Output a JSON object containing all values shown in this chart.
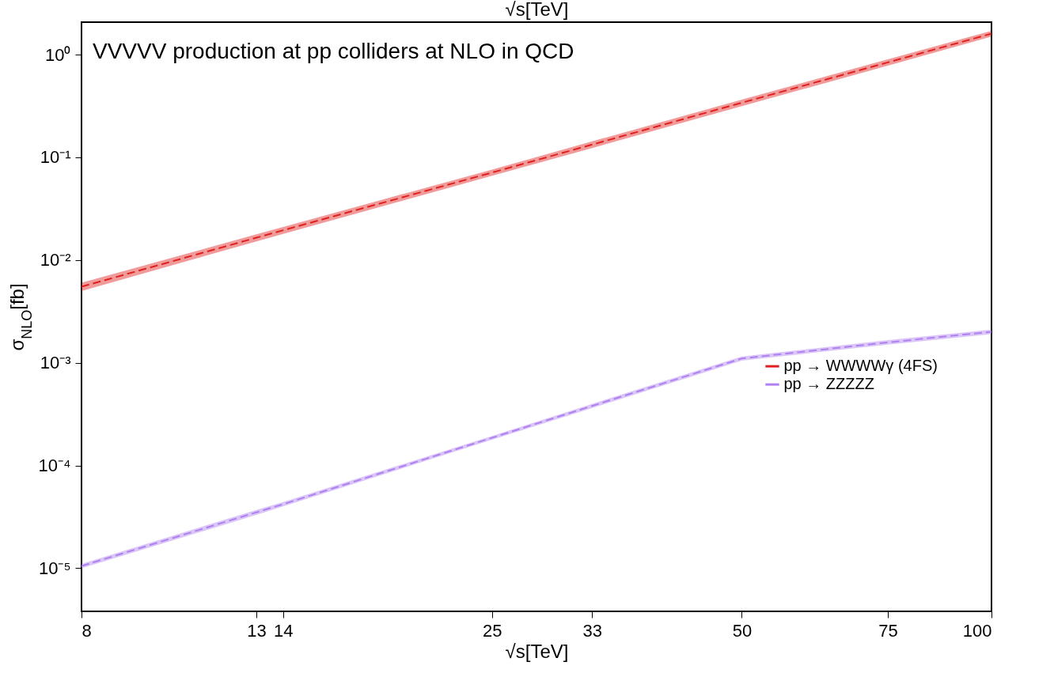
{
  "chart_data": {
    "type": "line",
    "title": "VVVVV production at pp colliders at NLO in QCD",
    "xlabel": "√s[TeV]",
    "x2label": "√s[TeV]",
    "ylabel": "σ$_{NLO}$[fb]",
    "x": [
      8,
      13,
      14,
      25,
      33,
      50,
      75,
      100
    ],
    "series": [
      {
        "name": "pp → WWWWγ (4FS)",
        "color": "#e02020",
        "values": [
          0.0055,
          0.0165,
          0.0195,
          0.071,
          0.133,
          0.34,
          0.84,
          1.6
        ],
        "lower": [
          0.005,
          0.0152,
          0.018,
          0.066,
          0.123,
          0.315,
          0.78,
          1.5
        ],
        "upper": [
          0.006,
          0.0178,
          0.021,
          0.076,
          0.143,
          0.365,
          0.9,
          1.7
        ]
      },
      {
        "name": "pp → ZZZZZ",
        "color": "#b080f0",
        "values": [
          1.05e-05,
          3.5e-05,
          4.2e-05,
          0.000186,
          0.00038,
          0.0011,
          0.00158,
          0.002
        ],
        "lower": [
          1e-05,
          3.3e-05,
          4e-05,
          0.000178,
          0.000362,
          0.00105,
          0.0015,
          0.0019
        ],
        "upper": [
          1.1e-05,
          3.7e-05,
          4.4e-05,
          0.000194,
          0.000398,
          0.00115,
          0.00166,
          0.0021
        ]
      }
    ],
    "log": "xy",
    "xlim": [
      8,
      100
    ],
    "xticks": [
      8,
      13,
      14,
      25,
      33,
      50,
      75,
      100
    ],
    "ylim": [
      3.8e-06,
      2.07
    ],
    "yticks": [
      {
        "value": 1e-05,
        "label": "10⁻⁵"
      },
      {
        "value": 0.0001,
        "label": "10⁻⁴"
      },
      {
        "value": 0.001,
        "label": "10⁻³"
      },
      {
        "value": 0.01,
        "label": "10⁻²"
      },
      {
        "value": 0.1,
        "label": "10⁻¹"
      },
      {
        "value": 1,
        "label": "10⁰"
      }
    ],
    "grid": false,
    "legend": "right",
    "line_style": "dashed",
    "marker": "none"
  }
}
